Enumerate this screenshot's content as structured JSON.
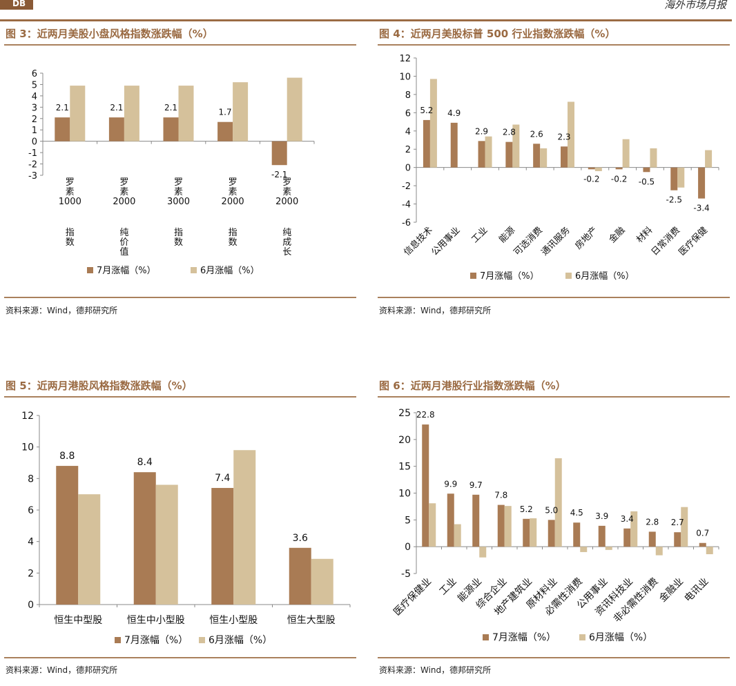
{
  "header": {
    "logo_text": "DB",
    "right_text": "海外市场月报"
  },
  "colors": {
    "jul": "#a97b54",
    "jun": "#d5c19b",
    "title": "#9a6a42",
    "rule": "#a9805c"
  },
  "figures": [
    {
      "title": "图 3：近两月美股小盘风格指数涨跌幅（%）",
      "source": "资料来源：Wind，德邦研究所"
    },
    {
      "title": "图 4：近两月美股标普 500 行业指数涨跌幅（%）",
      "source": "资料来源：Wind，德邦研究所"
    },
    {
      "title": "图 5：近两月港股风格指数涨跌幅（%）",
      "source": "资料来源：Wind，德邦研究所"
    },
    {
      "title": "图 6：近两月港股行业指数涨跌幅（%）",
      "source": "资料来源：Wind，德邦研究所"
    }
  ],
  "chart_data": [
    {
      "type": "bar",
      "title": "近两月美股小盘风格指数涨跌幅（%）",
      "categories": [
        "罗素1000指数",
        "罗素2000纯价值",
        "罗素3000指数",
        "罗素2000指数",
        "罗素2000纯成长"
      ],
      "series": [
        {
          "name": "7月涨幅（%）",
          "values": [
            2.1,
            2.1,
            2.1,
            1.7,
            -2.1
          ],
          "labels": [
            "2.1",
            "2.1",
            "2.1",
            "1.7",
            "-2.1"
          ]
        },
        {
          "name": "6月涨幅（%）",
          "values": [
            4.9,
            4.9,
            4.9,
            5.2,
            5.6
          ]
        }
      ],
      "ylim": [
        -3,
        6
      ],
      "yticks": [
        -3,
        -2,
        -1,
        0,
        1,
        2,
        3,
        4,
        5,
        6
      ],
      "legend": "bottom"
    },
    {
      "type": "bar",
      "title": "近两月美股标普 500 行业指数涨跌幅（%）",
      "categories": [
        "信息技术",
        "公用事业",
        "工业",
        "能源",
        "可选消费",
        "通讯服务",
        "房地产",
        "金融",
        "材料",
        "日常消费",
        "医疗保健"
      ],
      "series": [
        {
          "name": "7月涨幅（%）",
          "values": [
            5.2,
            4.9,
            2.9,
            2.8,
            2.6,
            2.3,
            -0.2,
            -0.2,
            -0.5,
            -2.5,
            -3.4
          ],
          "labels": [
            "5.2",
            "4.9",
            "2.9",
            "2.8",
            "2.6",
            "2.3",
            "-0.2",
            "-0.2",
            "-0.5",
            "-2.5",
            "-3.4"
          ]
        },
        {
          "name": "6月涨幅（%）",
          "values": [
            9.7,
            0,
            3.4,
            4.7,
            2.1,
            7.2,
            -0.4,
            3.1,
            2.1,
            -2.2,
            1.9
          ]
        }
      ],
      "ylim": [
        -6,
        12
      ],
      "yticks": [
        -6,
        -4,
        -2,
        0,
        2,
        4,
        6,
        8,
        10,
        12
      ],
      "legend": "bottom"
    },
    {
      "type": "bar",
      "title": "近两月港股风格指数涨跌幅（%）",
      "categories": [
        "恒生中型股",
        "恒生中小型股",
        "恒生小型股",
        "恒生大型股"
      ],
      "series": [
        {
          "name": "7月涨幅（%）",
          "values": [
            8.8,
            8.4,
            7.4,
            3.6
          ],
          "labels": [
            "8.8",
            "8.4",
            "7.4",
            "3.6"
          ]
        },
        {
          "name": "6月涨幅（%）",
          "values": [
            7.0,
            7.6,
            9.8,
            2.9
          ]
        }
      ],
      "ylim": [
        0,
        12
      ],
      "yticks": [
        0,
        2,
        4,
        6,
        8,
        10,
        12
      ],
      "legend": "bottom"
    },
    {
      "type": "bar",
      "title": "近两月港股行业指数涨跌幅（%）",
      "categories": [
        "医疗保健业",
        "工业",
        "能源业",
        "综合企业",
        "地产建筑业",
        "原材料业",
        "必需性消费",
        "公用事业",
        "资讯科技业",
        "非必需性消费",
        "金融业",
        "电讯业"
      ],
      "series": [
        {
          "name": "7月涨幅（%）",
          "values": [
            22.8,
            9.9,
            9.7,
            7.8,
            5.2,
            5.0,
            4.5,
            3.9,
            3.4,
            2.8,
            2.7,
            0.7
          ],
          "labels": [
            "22.8",
            "9.9",
            "9.7",
            "7.8",
            "5.2",
            "5.0",
            "4.5",
            "3.9",
            "3.4",
            "2.8",
            "2.7",
            "0.7"
          ]
        },
        {
          "name": "6月涨幅（%）",
          "values": [
            8.1,
            4.2,
            -2.0,
            7.6,
            5.3,
            16.5,
            -1.0,
            -0.6,
            6.6,
            -1.6,
            7.4,
            -1.4
          ]
        }
      ],
      "ylim": [
        -5,
        25
      ],
      "yticks": [
        -5,
        0,
        5,
        10,
        15,
        20,
        25
      ],
      "legend": "bottom"
    }
  ]
}
